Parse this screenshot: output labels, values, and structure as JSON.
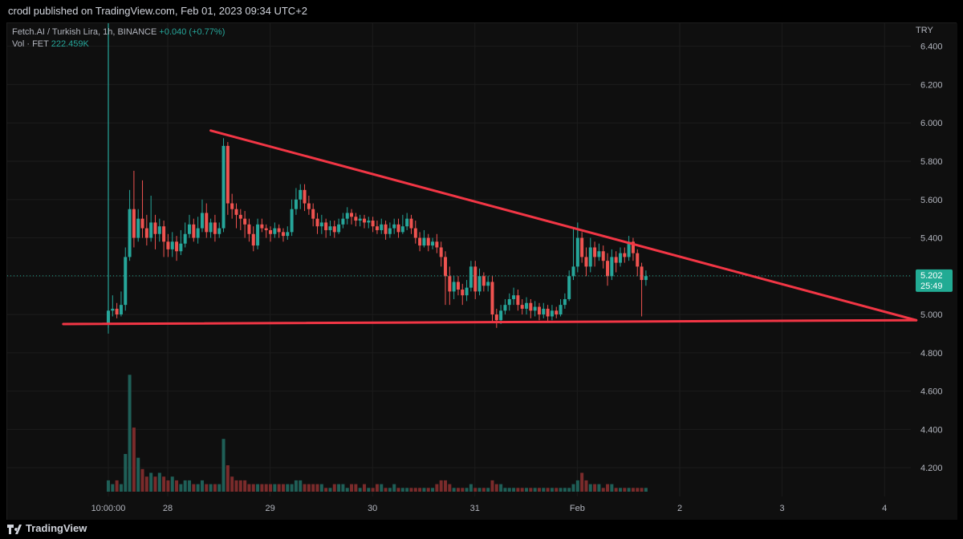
{
  "header": {
    "published": "crodl published on TradingView.com, Feb 01, 2023 09:34 UTC+2"
  },
  "legend": {
    "symbol": "Fetch.AI / Turkish Lira, 1h, BINANCE",
    "change": "+0.040 (+0.77%)",
    "vol_label": "Vol · FET",
    "vol_value": "222.459K"
  },
  "footer": {
    "brand": "TradingView"
  },
  "colors": {
    "up": "#26a69a",
    "down": "#ef5350",
    "trendline": "#f23645",
    "bg": "#0f0f0f",
    "price_tag": "#22ab94"
  },
  "chart_data": {
    "type": "candlestick",
    "currency": "TRY",
    "price_axis_ticks": [
      "6.400",
      "6.200",
      "6.000",
      "5.800",
      "5.600",
      "5.400",
      "5.200",
      "5.000",
      "4.800",
      "4.600",
      "4.400",
      "4.200"
    ],
    "ylim": [
      4.05,
      6.52
    ],
    "time_axis_ticks": [
      {
        "label": "10:00:00",
        "day": 27.42
      },
      {
        "label": "28",
        "day": 28.0
      },
      {
        "label": "29",
        "day": 29.0
      },
      {
        "label": "30",
        "day": 30.0
      },
      {
        "label": "31",
        "day": 31.0
      },
      {
        "label": "Feb",
        "day": 32.0
      },
      {
        "label": "2",
        "day": 33.0
      },
      {
        "label": "3",
        "day": 34.0
      },
      {
        "label": "4",
        "day": 35.0
      }
    ],
    "current_price": "5.202",
    "countdown": "25:49",
    "grid": true,
    "candles": [
      [
        4.95,
        5.02,
        5.05,
        4.9
      ],
      [
        5.02,
        5.03,
        5.1,
        4.99
      ],
      [
        5.03,
        5.0,
        5.06,
        4.98
      ],
      [
        5.0,
        5.05,
        5.12,
        4.99
      ],
      [
        5.05,
        5.3,
        5.35,
        5.02
      ],
      [
        5.3,
        5.55,
        5.65,
        5.28
      ],
      [
        5.55,
        5.4,
        5.75,
        5.35
      ],
      [
        5.4,
        5.5,
        5.55,
        5.38
      ],
      [
        5.5,
        5.45,
        5.7,
        5.4
      ],
      [
        5.45,
        5.4,
        5.52,
        5.36
      ],
      [
        5.4,
        5.48,
        5.62,
        5.38
      ],
      [
        5.48,
        5.42,
        5.52,
        5.34
      ],
      [
        5.42,
        5.46,
        5.5,
        5.38
      ],
      [
        5.46,
        5.38,
        5.49,
        5.3
      ],
      [
        5.38,
        5.34,
        5.42,
        5.3
      ],
      [
        5.34,
        5.38,
        5.43,
        5.3
      ],
      [
        5.38,
        5.33,
        5.41,
        5.28
      ],
      [
        5.33,
        5.37,
        5.44,
        5.31
      ],
      [
        5.37,
        5.42,
        5.48,
        5.35
      ],
      [
        5.42,
        5.47,
        5.52,
        5.4
      ],
      [
        5.47,
        5.4,
        5.5,
        5.38
      ],
      [
        5.4,
        5.45,
        5.51,
        5.37
      ],
      [
        5.45,
        5.53,
        5.6,
        5.43
      ],
      [
        5.53,
        5.43,
        5.58,
        5.4
      ],
      [
        5.43,
        5.48,
        5.5,
        5.4
      ],
      [
        5.48,
        5.42,
        5.52,
        5.38
      ],
      [
        5.42,
        5.45,
        5.48,
        5.4
      ],
      [
        5.45,
        5.88,
        5.92,
        5.43
      ],
      [
        5.88,
        5.58,
        5.9,
        5.52
      ],
      [
        5.58,
        5.55,
        5.63,
        5.5
      ],
      [
        5.55,
        5.52,
        5.58,
        5.45
      ],
      [
        5.52,
        5.5,
        5.55,
        5.44
      ],
      [
        5.5,
        5.47,
        5.54,
        5.4
      ],
      [
        5.47,
        5.42,
        5.5,
        5.38
      ],
      [
        5.42,
        5.36,
        5.46,
        5.33
      ],
      [
        5.36,
        5.47,
        5.5,
        5.34
      ],
      [
        5.47,
        5.45,
        5.5,
        5.43
      ],
      [
        5.45,
        5.44,
        5.47,
        5.4
      ],
      [
        5.44,
        5.42,
        5.46,
        5.38
      ],
      [
        5.42,
        5.45,
        5.48,
        5.4
      ],
      [
        5.45,
        5.43,
        5.47,
        5.4
      ],
      [
        5.43,
        5.41,
        5.45,
        5.38
      ],
      [
        5.41,
        5.43,
        5.46,
        5.39
      ],
      [
        5.43,
        5.55,
        5.6,
        5.41
      ],
      [
        5.55,
        5.6,
        5.66,
        5.52
      ],
      [
        5.6,
        5.65,
        5.68,
        5.55
      ],
      [
        5.65,
        5.58,
        5.68,
        5.54
      ],
      [
        5.58,
        5.55,
        5.62,
        5.52
      ],
      [
        5.55,
        5.5,
        5.58,
        5.46
      ],
      [
        5.5,
        5.46,
        5.53,
        5.42
      ],
      [
        5.46,
        5.48,
        5.52,
        5.42
      ],
      [
        5.48,
        5.44,
        5.5,
        5.4
      ],
      [
        5.44,
        5.46,
        5.49,
        5.41
      ],
      [
        5.46,
        5.43,
        5.49,
        5.4
      ],
      [
        5.43,
        5.47,
        5.5,
        5.42
      ],
      [
        5.47,
        5.5,
        5.53,
        5.45
      ],
      [
        5.5,
        5.53,
        5.56,
        5.47
      ],
      [
        5.53,
        5.51,
        5.55,
        5.47
      ],
      [
        5.51,
        5.49,
        5.53,
        5.46
      ],
      [
        5.49,
        5.5,
        5.52,
        5.46
      ],
      [
        5.5,
        5.48,
        5.52,
        5.45
      ],
      [
        5.48,
        5.49,
        5.51,
        5.45
      ],
      [
        5.49,
        5.46,
        5.51,
        5.43
      ],
      [
        5.46,
        5.44,
        5.49,
        5.42
      ],
      [
        5.44,
        5.47,
        5.5,
        5.42
      ],
      [
        5.47,
        5.42,
        5.49,
        5.39
      ],
      [
        5.42,
        5.45,
        5.48,
        5.4
      ],
      [
        5.45,
        5.47,
        5.5,
        5.42
      ],
      [
        5.47,
        5.43,
        5.5,
        5.4
      ],
      [
        5.43,
        5.46,
        5.52,
        5.42
      ],
      [
        5.46,
        5.5,
        5.53,
        5.44
      ],
      [
        5.5,
        5.45,
        5.52,
        5.42
      ],
      [
        5.45,
        5.4,
        5.49,
        5.37
      ],
      [
        5.4,
        5.36,
        5.43,
        5.33
      ],
      [
        5.36,
        5.4,
        5.44,
        5.35
      ],
      [
        5.4,
        5.36,
        5.42,
        5.33
      ],
      [
        5.36,
        5.38,
        5.4,
        5.34
      ],
      [
        5.38,
        5.35,
        5.42,
        5.32
      ],
      [
        5.35,
        5.3,
        5.38,
        5.25
      ],
      [
        5.3,
        5.2,
        5.33,
        5.05
      ],
      [
        5.2,
        5.12,
        5.25,
        5.05
      ],
      [
        5.12,
        5.17,
        5.2,
        5.08
      ],
      [
        5.17,
        5.13,
        5.2,
        5.1
      ],
      [
        5.13,
        5.1,
        5.16,
        5.05
      ],
      [
        5.1,
        5.14,
        5.18,
        5.07
      ],
      [
        5.14,
        5.25,
        5.28,
        5.12
      ],
      [
        5.25,
        5.12,
        5.28,
        5.08
      ],
      [
        5.12,
        5.2,
        5.24,
        5.1
      ],
      [
        5.2,
        5.15,
        5.22,
        5.12
      ],
      [
        5.15,
        5.17,
        5.2,
        5.12
      ],
      [
        5.17,
        5.0,
        5.2,
        4.96
      ],
      [
        5.0,
        4.97,
        5.03,
        4.93
      ],
      [
        4.97,
        5.02,
        5.05,
        4.95
      ],
      [
        5.02,
        5.05,
        5.08,
        5.0
      ],
      [
        5.05,
        5.08,
        5.11,
        5.02
      ],
      [
        5.08,
        5.1,
        5.14,
        5.05
      ],
      [
        5.1,
        5.05,
        5.13,
        5.02
      ],
      [
        5.05,
        5.03,
        5.08,
        5.0
      ],
      [
        5.03,
        5.06,
        5.09,
        5.0
      ],
      [
        5.06,
        5.02,
        5.08,
        4.98
      ],
      [
        5.02,
        5.04,
        5.07,
        4.99
      ],
      [
        5.04,
        5.0,
        5.06,
        4.97
      ],
      [
        5.0,
        5.03,
        5.06,
        4.98
      ],
      [
        5.03,
        4.99,
        5.05,
        4.96
      ],
      [
        4.99,
        5.02,
        5.05,
        4.97
      ],
      [
        5.02,
        5.0,
        5.04,
        4.98
      ],
      [
        5.0,
        5.05,
        5.08,
        4.99
      ],
      [
        5.05,
        5.08,
        5.11,
        5.03
      ],
      [
        5.08,
        5.2,
        5.23,
        5.07
      ],
      [
        5.2,
        5.25,
        5.45,
        5.18
      ],
      [
        5.25,
        5.4,
        5.48,
        5.22
      ],
      [
        5.4,
        5.3,
        5.43,
        5.27
      ],
      [
        5.3,
        5.25,
        5.35,
        5.2
      ],
      [
        5.25,
        5.35,
        5.4,
        5.22
      ],
      [
        5.35,
        5.3,
        5.38,
        5.25
      ],
      [
        5.3,
        5.33,
        5.37,
        5.28
      ],
      [
        5.33,
        5.28,
        5.36,
        5.24
      ],
      [
        5.28,
        5.2,
        5.32,
        5.15
      ],
      [
        5.2,
        5.3,
        5.34,
        5.18
      ],
      [
        5.3,
        5.27,
        5.33,
        5.22
      ],
      [
        5.27,
        5.32,
        5.35,
        5.25
      ],
      [
        5.32,
        5.3,
        5.35,
        5.27
      ],
      [
        5.3,
        5.38,
        5.41,
        5.28
      ],
      [
        5.38,
        5.32,
        5.4,
        5.28
      ],
      [
        5.32,
        5.25,
        5.34,
        5.2
      ],
      [
        5.25,
        5.18,
        5.27,
        4.99
      ],
      [
        5.18,
        5.2,
        5.23,
        5.15
      ]
    ],
    "volume": [
      0.03,
      0.02,
      0.03,
      0.02,
      0.1,
      0.31,
      0.17,
      0.09,
      0.06,
      0.04,
      0.05,
      0.04,
      0.05,
      0.04,
      0.03,
      0.04,
      0.03,
      0.02,
      0.03,
      0.03,
      0.02,
      0.02,
      0.03,
      0.02,
      0.02,
      0.02,
      0.02,
      0.14,
      0.07,
      0.04,
      0.03,
      0.03,
      0.03,
      0.02,
      0.02,
      0.02,
      0.02,
      0.02,
      0.02,
      0.02,
      0.02,
      0.02,
      0.02,
      0.02,
      0.03,
      0.03,
      0.02,
      0.02,
      0.02,
      0.02,
      0.02,
      0.01,
      0.01,
      0.02,
      0.02,
      0.02,
      0.01,
      0.02,
      0.02,
      0.01,
      0.02,
      0.01,
      0.01,
      0.02,
      0.02,
      0.01,
      0.01,
      0.02,
      0.01,
      0.01,
      0.01,
      0.01,
      0.01,
      0.01,
      0.01,
      0.01,
      0.01,
      0.02,
      0.03,
      0.03,
      0.02,
      0.01,
      0.01,
      0.01,
      0.01,
      0.02,
      0.01,
      0.01,
      0.01,
      0.01,
      0.03,
      0.02,
      0.02,
      0.01,
      0.01,
      0.01,
      0.01,
      0.01,
      0.01,
      0.01,
      0.01,
      0.01,
      0.01,
      0.01,
      0.01,
      0.01,
      0.01,
      0.01,
      0.01,
      0.02,
      0.03,
      0.05,
      0.03,
      0.02,
      0.02,
      0.02,
      0.01,
      0.02,
      0.02,
      0.01,
      0.01,
      0.01,
      0.01,
      0.01,
      0.01,
      0.01,
      0.01,
      0.01,
      0.01
    ],
    "trendlines": [
      {
        "from": [
          28.42,
          5.96
        ],
        "to": [
          35.31,
          4.97
        ]
      },
      {
        "from": [
          26.98,
          4.95
        ],
        "to": [
          35.31,
          4.97
        ]
      }
    ]
  }
}
